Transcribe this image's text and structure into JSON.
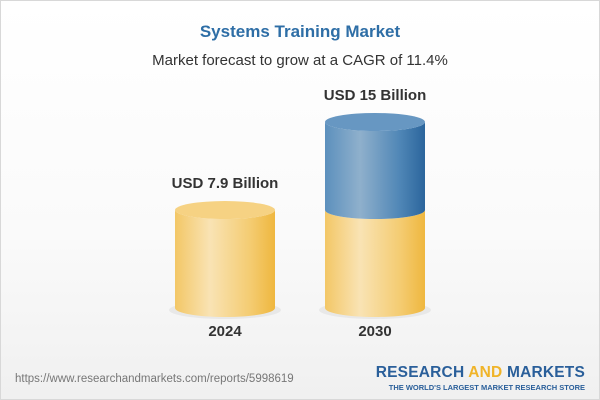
{
  "title": "Systems Training Market",
  "subtitle": "Market forecast to grow at a CAGR of 11.4%",
  "chart_data": {
    "type": "bar",
    "style": "3d-cylinder",
    "categories": [
      "2024",
      "2030"
    ],
    "values": [
      7.9,
      15
    ],
    "data_labels": [
      "USD 7.9 Billion",
      "USD 15 Billion"
    ],
    "unit": "USD Billion",
    "colors": {
      "base": "#f2c35a",
      "growth": "#3f7bb0"
    },
    "grid": false
  },
  "footer": {
    "url": "https://www.researchandmarkets.com/reports/5998619",
    "logo_part1": "RESEARCH ",
    "logo_part2": "AND",
    "logo_part3": " MARKETS",
    "tagline": "THE WORLD'S LARGEST MARKET RESEARCH STORE"
  }
}
